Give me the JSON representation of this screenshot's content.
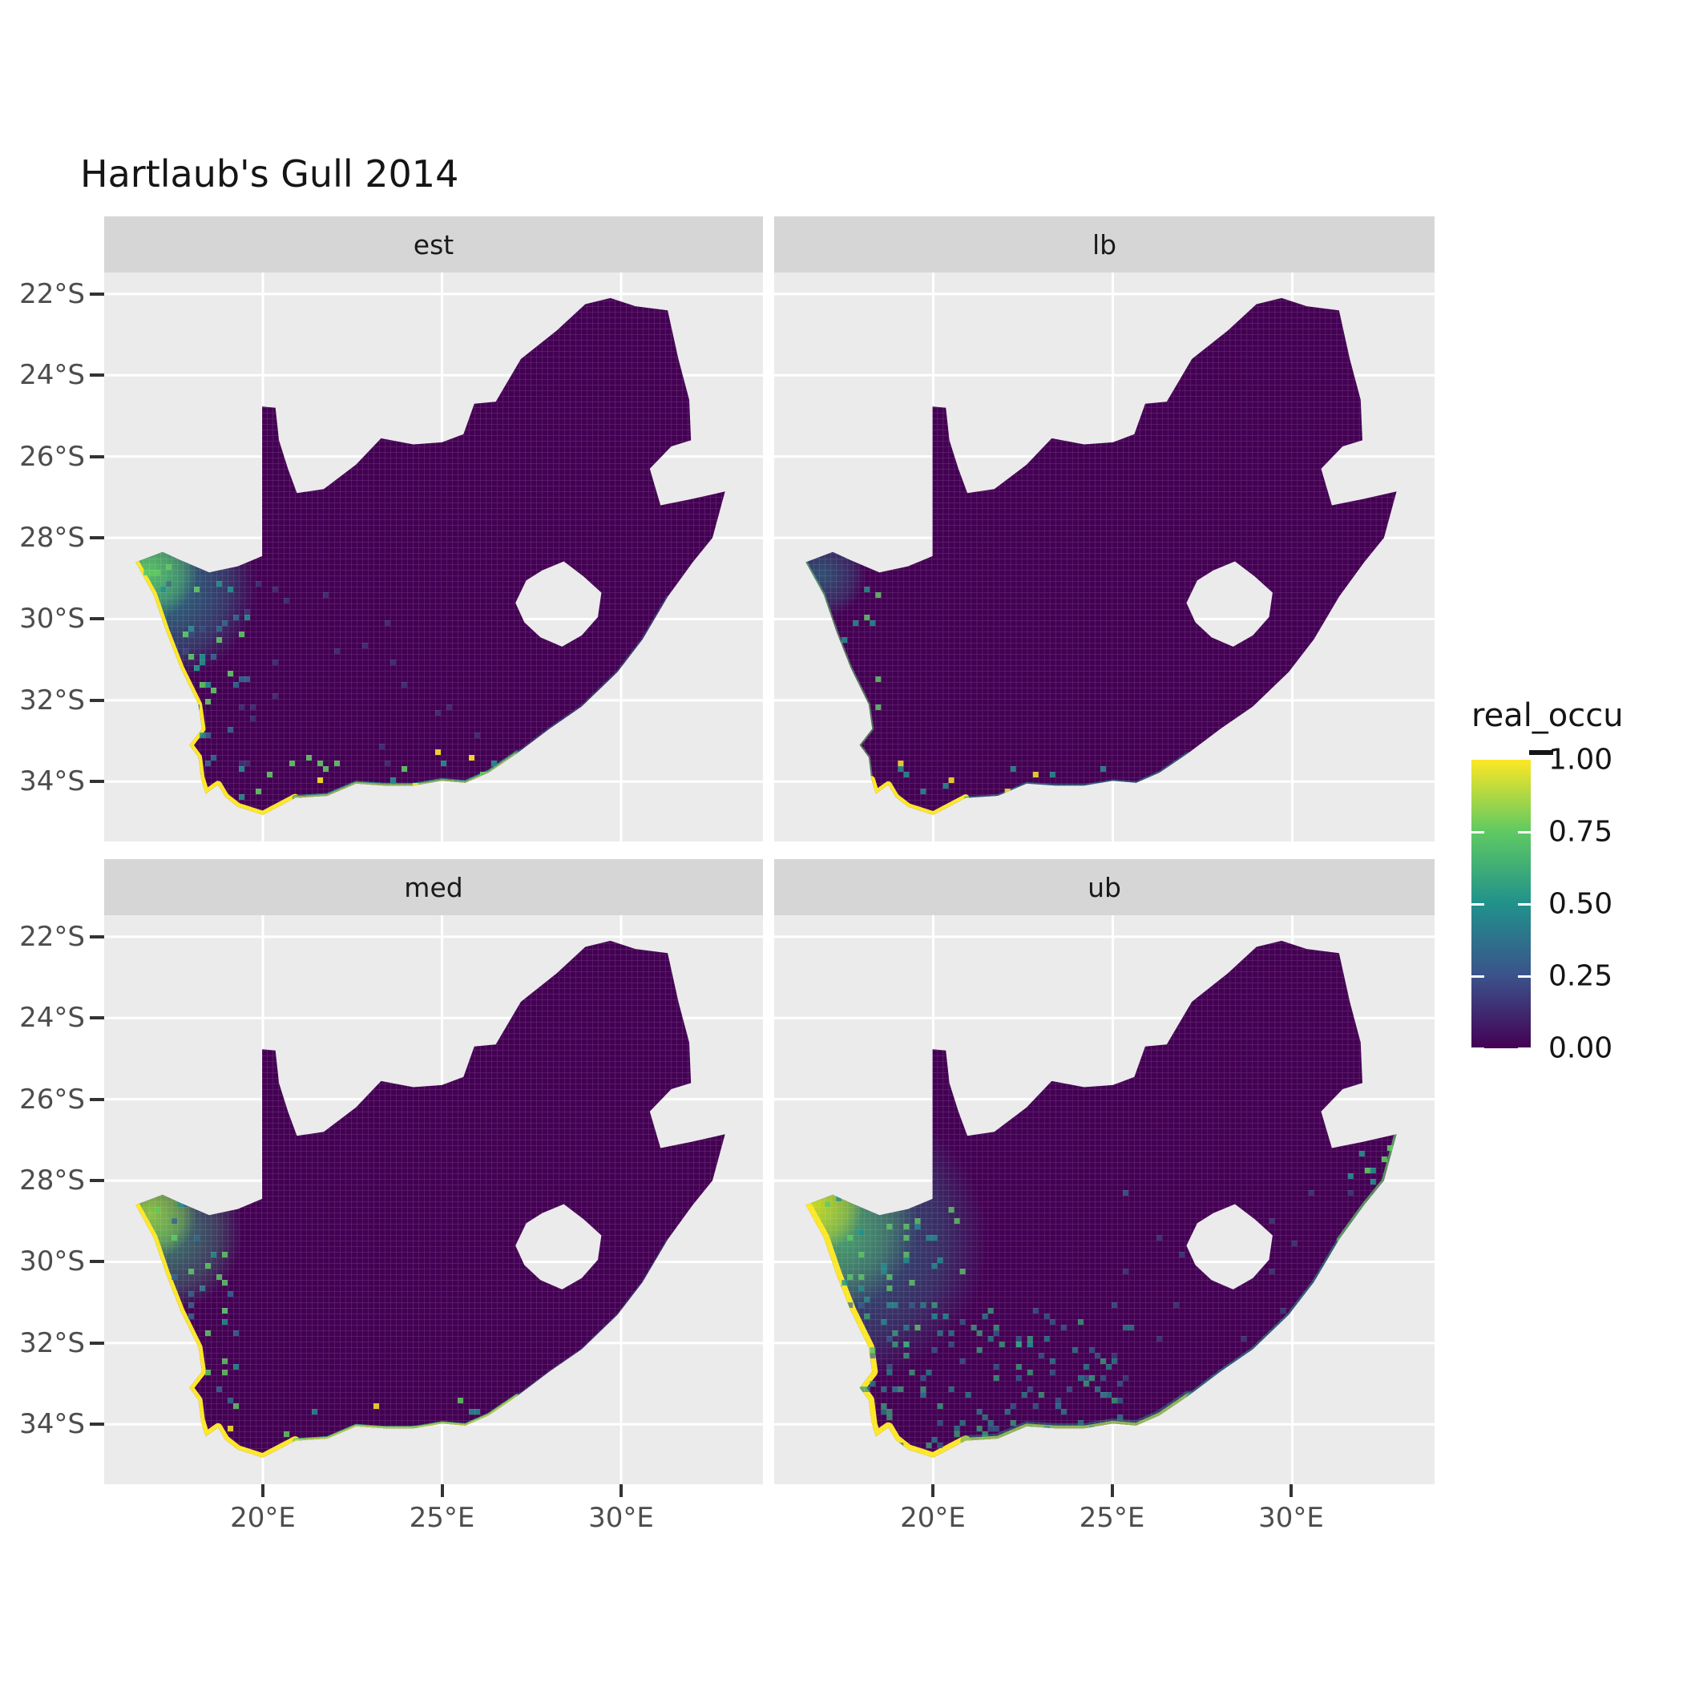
{
  "title": "Hartlaub's Gull 2014",
  "legend": {
    "title": "real_occu",
    "labels": [
      "1.00",
      "0.75",
      "0.50",
      "0.25",
      "0.00"
    ],
    "gradient_bottom_to_top": [
      "#440154",
      "#3B528B",
      "#21918C",
      "#5EC962",
      "#FDE725"
    ]
  },
  "axes": {
    "y_tick_labels": [
      "22°S",
      "24°S",
      "26°S",
      "28°S",
      "30°S",
      "32°S",
      "34°S"
    ],
    "y_tick_lats": [
      22,
      24,
      26,
      28,
      30,
      32,
      34
    ],
    "x_tick_labels": [
      "20°E",
      "25°E",
      "30°E"
    ],
    "x_tick_lons": [
      20,
      25,
      30
    ]
  },
  "colors": {
    "panel_bg": "#EBEBEB",
    "strip_bg": "#D6D6D6",
    "grid_line": "#FFFFFF",
    "tick_mark": "#333333",
    "axis_text": "#4d4d4d",
    "land_base": "#440154",
    "viridis_0": "#440154",
    "viridis_25": "#3B528B",
    "viridis_50": "#21918C",
    "viridis_75": "#5EC962",
    "viridis_100": "#FDE725"
  },
  "geometry": {
    "outline": [
      [
        16.45,
        28.6
      ],
      [
        17.2,
        28.35
      ],
      [
        17.7,
        28.55
      ],
      [
        18.5,
        28.85
      ],
      [
        19.3,
        28.7
      ],
      [
        19.98,
        28.45
      ],
      [
        19.98,
        24.77
      ],
      [
        20.35,
        24.8
      ],
      [
        20.45,
        25.6
      ],
      [
        20.7,
        26.3
      ],
      [
        20.95,
        26.9
      ],
      [
        21.7,
        26.8
      ],
      [
        22.6,
        26.2
      ],
      [
        23.3,
        25.55
      ],
      [
        24.2,
        25.7
      ],
      [
        25.0,
        25.65
      ],
      [
        25.6,
        25.45
      ],
      [
        25.9,
        24.7
      ],
      [
        26.5,
        24.65
      ],
      [
        27.2,
        23.6
      ],
      [
        28.2,
        22.9
      ],
      [
        29.0,
        22.25
      ],
      [
        29.7,
        22.1
      ],
      [
        30.4,
        22.3
      ],
      [
        31.3,
        22.4
      ],
      [
        31.6,
        23.6
      ],
      [
        31.9,
        24.6
      ],
      [
        31.95,
        25.6
      ],
      [
        31.4,
        25.75
      ],
      [
        30.8,
        26.3
      ],
      [
        31.1,
        27.2
      ],
      [
        31.95,
        27.05
      ],
      [
        32.9,
        26.86
      ],
      [
        32.55,
        28.0
      ],
      [
        32.0,
        28.6
      ],
      [
        31.3,
        29.45
      ],
      [
        30.6,
        30.5
      ],
      [
        29.9,
        31.3
      ],
      [
        28.9,
        32.15
      ],
      [
        28.0,
        32.7
      ],
      [
        27.1,
        33.3
      ],
      [
        26.3,
        33.78
      ],
      [
        25.65,
        34.03
      ],
      [
        25.0,
        33.98
      ],
      [
        24.2,
        34.1
      ],
      [
        23.4,
        34.1
      ],
      [
        22.6,
        34.05
      ],
      [
        21.8,
        34.35
      ],
      [
        20.9,
        34.4
      ],
      [
        20.0,
        34.82
      ],
      [
        19.3,
        34.62
      ],
      [
        18.95,
        34.38
      ],
      [
        18.75,
        34.08
      ],
      [
        18.4,
        34.3
      ],
      [
        18.28,
        33.95
      ],
      [
        18.2,
        33.4
      ],
      [
        17.95,
        33.1
      ],
      [
        18.3,
        32.7
      ],
      [
        18.2,
        32.1
      ],
      [
        17.7,
        31.2
      ],
      [
        17.3,
        30.3
      ],
      [
        16.95,
        29.4
      ]
    ],
    "lesotho_hole": [
      [
        27.05,
        29.6
      ],
      [
        27.35,
        29.05
      ],
      [
        27.8,
        28.8
      ],
      [
        28.4,
        28.58
      ],
      [
        28.95,
        28.95
      ],
      [
        29.45,
        29.35
      ],
      [
        29.35,
        29.95
      ],
      [
        28.9,
        30.4
      ],
      [
        28.35,
        30.68
      ],
      [
        27.75,
        30.45
      ],
      [
        27.3,
        30.08
      ]
    ],
    "segments": {
      "west": [
        [
          16.45,
          28.6
        ],
        [
          16.95,
          29.4
        ],
        [
          17.3,
          30.3
        ],
        [
          17.7,
          31.2
        ],
        [
          18.2,
          32.1
        ],
        [
          18.3,
          32.7
        ],
        [
          17.95,
          33.1
        ],
        [
          18.2,
          33.4
        ],
        [
          18.28,
          33.95
        ]
      ],
      "southwest": [
        [
          18.28,
          33.95
        ],
        [
          18.4,
          34.3
        ],
        [
          18.75,
          34.08
        ],
        [
          18.95,
          34.38
        ],
        [
          19.3,
          34.62
        ],
        [
          20.0,
          34.82
        ],
        [
          20.9,
          34.4
        ]
      ],
      "south": [
        [
          20.9,
          34.4
        ],
        [
          21.8,
          34.35
        ],
        [
          22.6,
          34.05
        ],
        [
          23.4,
          34.1
        ],
        [
          24.2,
          34.1
        ],
        [
          25.0,
          33.98
        ],
        [
          25.65,
          34.03
        ],
        [
          26.3,
          33.78
        ],
        [
          27.1,
          33.3
        ]
      ],
      "east": [
        [
          27.1,
          33.3
        ],
        [
          28.0,
          32.7
        ],
        [
          28.9,
          32.15
        ],
        [
          29.9,
          31.3
        ],
        [
          30.6,
          30.5
        ],
        [
          31.3,
          29.45
        ]
      ],
      "eastN": [
        [
          31.3,
          29.45
        ],
        [
          32.0,
          28.6
        ],
        [
          32.55,
          28.0
        ],
        [
          32.9,
          26.86
        ]
      ]
    }
  },
  "facets": [
    {
      "label": "est",
      "style": {
        "strokes": [
          {
            "seg": "west",
            "color": "#FDE725",
            "w": 9,
            "o": 1
          },
          {
            "seg": "southwest",
            "color": "#FDE725",
            "w": 10,
            "o": 1
          },
          {
            "seg": "south",
            "color": "#21918C",
            "w": 7,
            "o": 0.85
          },
          {
            "seg": "south",
            "color": "#FDE725",
            "w": 4,
            "o": 0.5
          },
          {
            "seg": "east",
            "color": "#2C728E",
            "w": 4,
            "o": 0.45
          }
        ],
        "patches": [
          {
            "lon": 17.15,
            "lat": 29.2,
            "r": 120,
            "color": "#21918C",
            "o": 0.8
          },
          {
            "lon": 16.8,
            "lat": 28.8,
            "r": 62,
            "color": "#5EC962",
            "o": 0.9
          }
        ],
        "specks": [
          {
            "n": 50,
            "lon": [
              16.7,
              19.6
            ],
            "lat": [
              28.4,
              33.6
            ],
            "colors": [
              "#21918C",
              "#31688E",
              "#5EC962"
            ],
            "o": 0.9,
            "seed": 11
          },
          {
            "n": 20,
            "lon": [
              19.0,
              27.0
            ],
            "lat": [
              33.3,
              34.7
            ],
            "colors": [
              "#21918C",
              "#5EC962",
              "#FDE725"
            ],
            "o": 0.9,
            "seed": 12
          },
          {
            "n": 30,
            "lon": [
              17.0,
              26.0
            ],
            "lat": [
              29.0,
              34.0
            ],
            "colors": [
              "#3B528B"
            ],
            "o": 0.55,
            "seed": 13
          }
        ]
      }
    },
    {
      "label": "lb",
      "style": {
        "strokes": [
          {
            "seg": "west",
            "color": "#5EC962",
            "w": 4,
            "o": 0.55
          },
          {
            "seg": "southwest",
            "color": "#FDE725",
            "w": 9,
            "o": 1
          },
          {
            "seg": "south",
            "color": "#21918C",
            "w": 4,
            "o": 0.55
          }
        ],
        "patches": [
          {
            "lon": 16.9,
            "lat": 28.9,
            "r": 55,
            "color": "#21918C",
            "o": 0.55
          }
        ],
        "specks": [
          {
            "n": 16,
            "lon": [
              16.7,
              18.6
            ],
            "lat": [
              28.4,
              33.2
            ],
            "colors": [
              "#21918C",
              "#5EC962"
            ],
            "o": 0.85,
            "seed": 21
          },
          {
            "n": 12,
            "lon": [
              19.0,
              26.0
            ],
            "lat": [
              33.5,
              34.7
            ],
            "colors": [
              "#21918C",
              "#FDE725"
            ],
            "o": 0.85,
            "seed": 22
          }
        ]
      }
    },
    {
      "label": "med",
      "style": {
        "strokes": [
          {
            "seg": "west",
            "color": "#FDE725",
            "w": 10,
            "o": 1
          },
          {
            "seg": "southwest",
            "color": "#FDE725",
            "w": 11,
            "o": 1
          },
          {
            "seg": "south",
            "color": "#35B779",
            "w": 6,
            "o": 0.85
          },
          {
            "seg": "south",
            "color": "#FDE725",
            "w": 4,
            "o": 0.6
          },
          {
            "seg": "east",
            "color": "#2C728E",
            "w": 3,
            "o": 0.35
          }
        ],
        "patches": [
          {
            "lon": 17.2,
            "lat": 29.3,
            "r": 100,
            "color": "#35B779",
            "o": 0.7
          },
          {
            "lon": 16.85,
            "lat": 28.8,
            "r": 58,
            "color": "#9FDA3A",
            "o": 0.8
          }
        ],
        "specks": [
          {
            "n": 40,
            "lon": [
              16.7,
              19.4
            ],
            "lat": [
              28.4,
              33.6
            ],
            "colors": [
              "#21918C",
              "#31688E",
              "#5EC962"
            ],
            "o": 0.85,
            "seed": 31
          },
          {
            "n": 16,
            "lon": [
              19.0,
              27.0
            ],
            "lat": [
              33.3,
              34.7
            ],
            "colors": [
              "#21918C",
              "#5EC962",
              "#FDE725"
            ],
            "o": 0.85,
            "seed": 32
          }
        ]
      }
    },
    {
      "label": "ub",
      "style": {
        "strokes": [
          {
            "seg": "west",
            "color": "#FDE725",
            "w": 14,
            "o": 1
          },
          {
            "seg": "southwest",
            "color": "#FDE725",
            "w": 13,
            "o": 1
          },
          {
            "seg": "south",
            "color": "#FDE725",
            "w": 7,
            "o": 0.9
          },
          {
            "seg": "south",
            "color": "#21918C",
            "w": 13,
            "o": 0.45
          },
          {
            "seg": "east",
            "color": "#21918C",
            "w": 5,
            "o": 0.6
          },
          {
            "seg": "eastN",
            "color": "#5EC962",
            "w": 6,
            "o": 0.7
          }
        ],
        "patches": [
          {
            "lon": 17.6,
            "lat": 29.5,
            "r": 175,
            "color": "#21918C",
            "o": 0.65
          },
          {
            "lon": 17.0,
            "lat": 29.0,
            "r": 115,
            "color": "#5EC962",
            "o": 0.7
          },
          {
            "lon": 16.7,
            "lat": 28.6,
            "r": 60,
            "color": "#D8E219",
            "o": 0.85
          }
        ],
        "specks": [
          {
            "n": 140,
            "lon": [
              17.5,
              25.5
            ],
            "lat": [
              31.0,
              34.7
            ],
            "colors": [
              "#21918C",
              "#31688E",
              "#35B779"
            ],
            "o": 0.7,
            "seed": 41
          },
          {
            "n": 45,
            "lon": [
              16.9,
              20.8
            ],
            "lat": [
              28.4,
              31.6
            ],
            "colors": [
              "#21918C",
              "#5EC962"
            ],
            "o": 0.8,
            "seed": 42
          },
          {
            "n": 25,
            "lon": [
              25.0,
              32.0
            ],
            "lat": [
              28.0,
              33.2
            ],
            "colors": [
              "#31688E"
            ],
            "o": 0.5,
            "seed": 43
          },
          {
            "n": 14,
            "lon": [
              31.6,
              32.9
            ],
            "lat": [
              26.9,
              29.2
            ],
            "colors": [
              "#5EC962",
              "#21918C",
              "#FDE725"
            ],
            "o": 0.9,
            "seed": 44
          }
        ]
      }
    }
  ],
  "chart_data": {
    "type": "heatmap",
    "title": "Hartlaub's Gull 2014",
    "variable": "real_occu",
    "value_range": [
      0.0,
      1.0
    ],
    "legend_ticks": [
      1.0,
      0.75,
      0.5,
      0.25,
      0.0
    ],
    "colormap": "viridis",
    "colormap_stops": [
      [
        0.0,
        "#440154"
      ],
      [
        0.25,
        "#3B528B"
      ],
      [
        0.5,
        "#21918C"
      ],
      [
        0.75,
        "#5EC962"
      ],
      [
        1.0,
        "#FDE725"
      ]
    ],
    "facets": [
      "est",
      "lb",
      "med",
      "ub"
    ],
    "facet_layout": [
      [
        "est",
        "lb"
      ],
      [
        "med",
        "ub"
      ]
    ],
    "region": "South Africa raster grid (Lesotho shown as hole, Eswatini as notch)",
    "x_axis": {
      "tick_labels": [
        "20°E",
        "25°E",
        "30°E"
      ],
      "range_deg_east": [
        15.6,
        34.0
      ],
      "gridlines": "white, major only"
    },
    "y_axis": {
      "tick_labels": [
        "22°S",
        "24°S",
        "26°S",
        "28°S",
        "30°S",
        "32°S",
        "34°S"
      ],
      "range_deg_south": [
        21.5,
        35.5
      ],
      "gridlines": "white, major only"
    },
    "cell_size_deg_approx": 0.15,
    "pattern_by_facet": {
      "est": "Interior ~0.00 (dark purple); occupancy ~1.0 (yellow) in a narrow band along the west coast 28.5S-34.8S and at the Cape; values 0.3-0.7 (teal/green) just inland of the NW coast and scattered along the south coast; isolated 0.2-0.5 cells near coasts.",
      "lb": "Lower bound: almost entirely ~0.00; thin green/teal cells on far west coast; yellow ~1.0 cells only around the SW tip (33.5S-34.8S); sparse teal on south coast.",
      "med": "Median: yellow ~1.0 band along full west coast and around the Cape/south coast; green ~0.6-0.8 band just inland in the NW; interior ~0.00.",
      "ub": "Upper bound: widest yellow ~1.0 coastal band (west and south coasts); large green-teal 0.3-0.8 gradient extending inland across the NW; many scattered 0.2-0.5 teal/blue cells across the SW interior; teal/green cells along the east coast up to ~27S."
    }
  }
}
